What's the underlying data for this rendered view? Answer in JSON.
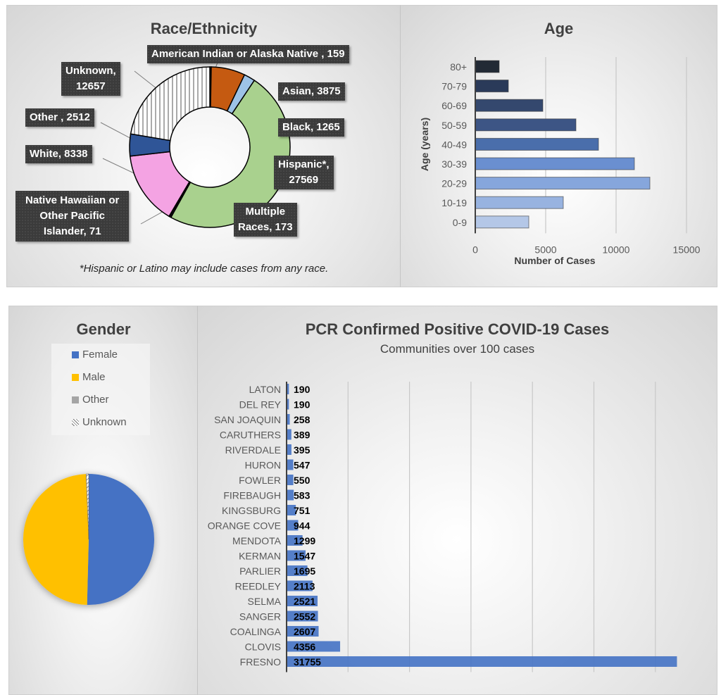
{
  "chart_data": [
    {
      "id": "race",
      "type": "pie",
      "variant": "donut",
      "title": "Race/Ethnicity",
      "footnote": "*Hispanic or Latino may include cases from any race.",
      "slices": [
        {
          "name": "American Indian or Alaska Native",
          "label": "American Indian or Alaska Native , 159",
          "value": 159,
          "color": "#1a1a1a"
        },
        {
          "name": "Asian",
          "label": "Asian, 3875",
          "value": 3875,
          "color": "#C55A11"
        },
        {
          "name": "Black",
          "label": "Black, 1265",
          "value": 1265,
          "color": "#9DC3E6"
        },
        {
          "name": "Hispanic*",
          "label": "Hispanic*, 27569",
          "value": 27569,
          "color": "#A9D18E"
        },
        {
          "name": "Multiple Races",
          "label": "Multiple Races, 173",
          "value": 173,
          "color": "#1a1a1a"
        },
        {
          "name": "Native Hawaiian or Other Pacific Islander",
          "label": "Native Hawaiian or Other Pacific Islander, 71",
          "value": 71,
          "color": "#C55A11"
        },
        {
          "name": "White",
          "label": "White, 8338",
          "value": 8338,
          "color": "#F4A3E3"
        },
        {
          "name": "Other",
          "label": "Other , 2512",
          "value": 2512,
          "color": "#2F5597"
        },
        {
          "name": "Unknown",
          "label": "Unknown, 12657",
          "value": 12657,
          "color": "hatch"
        }
      ]
    },
    {
      "id": "age",
      "type": "bar",
      "orientation": "horizontal",
      "title": "Age",
      "xlabel": "Number of Cases",
      "ylabel": "Age (years)",
      "xlim": [
        0,
        15000
      ],
      "xticks": [
        0,
        5000,
        10000,
        15000
      ],
      "grid": true,
      "categories": [
        "80+",
        "70-79",
        "60-69",
        "50-59",
        "40-49",
        "30-39",
        "20-29",
        "10-19",
        "0-9"
      ],
      "values": [
        1700,
        2350,
        4800,
        7150,
        8750,
        11300,
        12400,
        6250,
        3800
      ],
      "colors": [
        "#222a35",
        "#2a3a59",
        "#34486e",
        "#3d5585",
        "#4a6eab",
        "#6a8fd0",
        "#86a6dc",
        "#98b3e0",
        "#b4c7e7"
      ]
    },
    {
      "id": "gender",
      "type": "pie",
      "title": "Gender",
      "legend": "top",
      "slices": [
        {
          "name": "Female",
          "value": 50.4,
          "color": "#4472C4"
        },
        {
          "name": "Male",
          "value": 48.9,
          "color": "#FFC000"
        },
        {
          "name": "Other",
          "value": 0.1,
          "color": "#A5A5A5"
        },
        {
          "name": "Unknown",
          "value": 0.6,
          "color": "hatch"
        }
      ]
    },
    {
      "id": "communities",
      "type": "bar",
      "orientation": "horizontal",
      "title": "PCR Confirmed Positive COVID-19 Cases",
      "subtitle": "Communities over 100 cases",
      "xlim": [
        0,
        35000
      ],
      "grid": true,
      "gridlines": [
        5000,
        10000,
        15000,
        20000,
        25000,
        30000
      ],
      "color": "#4472C4",
      "categories": [
        "LATON",
        "DEL REY",
        "SAN JOAQUIN",
        "CARUTHERS",
        "RIVERDALE",
        "HURON",
        "FOWLER",
        "FIREBAUGH",
        "KINGSBURG",
        "ORANGE COVE",
        "MENDOTA",
        "KERMAN",
        "PARLIER",
        "REEDLEY",
        "SELMA",
        "SANGER",
        "COALINGA",
        "CLOVIS",
        "FRESNO"
      ],
      "values": [
        190,
        190,
        258,
        389,
        395,
        547,
        550,
        583,
        751,
        944,
        1299,
        1547,
        1695,
        2113,
        2521,
        2552,
        2607,
        4356,
        31755
      ]
    }
  ],
  "race": {
    "title": "Race/Ethnicity",
    "footnote": "*Hispanic or Latino may include cases from any race.",
    "labels": {
      "amind": "American Indian or Alaska Native , 159",
      "unknown_1": "Unknown,",
      "unknown_2": "12657",
      "asian": "Asian, 3875",
      "black": "Black, 1265",
      "other": "Other , 2512",
      "white": "White, 8338",
      "hispanic_1": "Hispanic*,",
      "hispanic_2": "27569",
      "nhpi_1": "Native Hawaiian or",
      "nhpi_2": "Other Pacific",
      "nhpi_3": "Islander, 71",
      "multi_1": "Multiple",
      "multi_2": "Races, 173"
    }
  },
  "age": {
    "title": "Age",
    "xlabel": "Number of Cases",
    "ylabel": "Age (years)"
  },
  "gender": {
    "title": "Gender",
    "legend": [
      "Female",
      "Male",
      "Other",
      "Unknown"
    ]
  },
  "pcr": {
    "title": "PCR Confirmed Positive COVID-19 Cases",
    "subtitle": "Communities over 100 cases"
  }
}
